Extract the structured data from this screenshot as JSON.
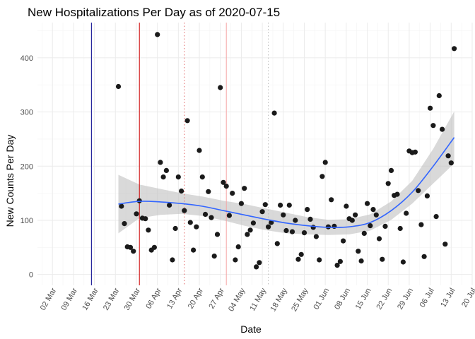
{
  "chart_data": {
    "type": "scatter",
    "title": "New Hospitalizations Per Day as of 2020-07-15",
    "xlabel": "Date",
    "ylabel": "New Counts Per Day",
    "xlim": [
      "2020-02-26",
      "2020-07-20"
    ],
    "ylim": [
      -20,
      465
    ],
    "grid": true,
    "x_ticks": [
      "02 Mar",
      "09 Mar",
      "16 Mar",
      "23 Mar",
      "30 Mar",
      "06 Apr",
      "13 Apr",
      "20 Apr",
      "27 Apr",
      "04 May",
      "11 May",
      "18 May",
      "25 May",
      "01 Jun",
      "08 Jun",
      "15 Jun",
      "22 Jun",
      "29 Jun",
      "06 Jul",
      "13 Jul",
      "20 Jul"
    ],
    "x_tick_dates": [
      "2020-03-02",
      "2020-03-09",
      "2020-03-16",
      "2020-03-23",
      "2020-03-30",
      "2020-04-06",
      "2020-04-13",
      "2020-04-20",
      "2020-04-27",
      "2020-05-04",
      "2020-05-11",
      "2020-05-18",
      "2020-05-25",
      "2020-06-01",
      "2020-06-08",
      "2020-06-15",
      "2020-06-22",
      "2020-06-29",
      "2020-07-06",
      "2020-07-13",
      "2020-07-20"
    ],
    "y_ticks": [
      0,
      100,
      200,
      300,
      400
    ],
    "reference_lines": [
      {
        "date": "2020-03-15",
        "color": "#00008b",
        "style": "solid"
      },
      {
        "date": "2020-03-31",
        "color": "#cc0000",
        "style": "solid"
      },
      {
        "date": "2020-04-15",
        "color": "#e06666",
        "style": "dotted"
      },
      {
        "date": "2020-04-29",
        "color": "#f4a6a6",
        "style": "solid"
      },
      {
        "date": "2020-05-13",
        "color": "#bbbbbb",
        "style": "dotted"
      }
    ],
    "points": [
      [
        "2020-03-24",
        347
      ],
      [
        "2020-03-25",
        126
      ],
      [
        "2020-03-26",
        94
      ],
      [
        "2020-03-27",
        51
      ],
      [
        "2020-03-28",
        50
      ],
      [
        "2020-03-29",
        43
      ],
      [
        "2020-03-30",
        112
      ],
      [
        "2020-03-31",
        136
      ],
      [
        "2020-04-01",
        104
      ],
      [
        "2020-04-02",
        103
      ],
      [
        "2020-04-03",
        82
      ],
      [
        "2020-04-04",
        45
      ],
      [
        "2020-04-05",
        50
      ],
      [
        "2020-04-06",
        443
      ],
      [
        "2020-04-07",
        207
      ],
      [
        "2020-04-08",
        180
      ],
      [
        "2020-04-09",
        192
      ],
      [
        "2020-04-10",
        128
      ],
      [
        "2020-04-11",
        27
      ],
      [
        "2020-04-12",
        85
      ],
      [
        "2020-04-13",
        180
      ],
      [
        "2020-04-14",
        154
      ],
      [
        "2020-04-15",
        118
      ],
      [
        "2020-04-16",
        284
      ],
      [
        "2020-04-17",
        96
      ],
      [
        "2020-04-18",
        45
      ],
      [
        "2020-04-19",
        88
      ],
      [
        "2020-04-20",
        229
      ],
      [
        "2020-04-21",
        180
      ],
      [
        "2020-04-22",
        111
      ],
      [
        "2020-04-23",
        153
      ],
      [
        "2020-04-24",
        105
      ],
      [
        "2020-04-25",
        34
      ],
      [
        "2020-04-26",
        74
      ],
      [
        "2020-04-27",
        345
      ],
      [
        "2020-04-28",
        170
      ],
      [
        "2020-04-29",
        163
      ],
      [
        "2020-04-30",
        109
      ],
      [
        "2020-05-01",
        150
      ],
      [
        "2020-05-02",
        27
      ],
      [
        "2020-05-03",
        51
      ],
      [
        "2020-05-04",
        131
      ],
      [
        "2020-05-05",
        159
      ],
      [
        "2020-05-06",
        74
      ],
      [
        "2020-05-07",
        82
      ],
      [
        "2020-05-08",
        95
      ],
      [
        "2020-05-09",
        14
      ],
      [
        "2020-05-10",
        22
      ],
      [
        "2020-05-11",
        116
      ],
      [
        "2020-05-12",
        129
      ],
      [
        "2020-05-13",
        88
      ],
      [
        "2020-05-14",
        96
      ],
      [
        "2020-05-15",
        298
      ],
      [
        "2020-05-16",
        57
      ],
      [
        "2020-05-17",
        128
      ],
      [
        "2020-05-18",
        110
      ],
      [
        "2020-05-19",
        81
      ],
      [
        "2020-05-20",
        128
      ],
      [
        "2020-05-21",
        79
      ],
      [
        "2020-05-22",
        100
      ],
      [
        "2020-05-23",
        28
      ],
      [
        "2020-05-24",
        37
      ],
      [
        "2020-05-25",
        77
      ],
      [
        "2020-05-26",
        120
      ],
      [
        "2020-05-27",
        102
      ],
      [
        "2020-05-28",
        87
      ],
      [
        "2020-05-29",
        70
      ],
      [
        "2020-05-30",
        27
      ],
      [
        "2020-05-31",
        181
      ],
      [
        "2020-06-01",
        207
      ],
      [
        "2020-06-02",
        88
      ],
      [
        "2020-06-03",
        138
      ],
      [
        "2020-06-04",
        89
      ],
      [
        "2020-06-05",
        17
      ],
      [
        "2020-06-06",
        24
      ],
      [
        "2020-06-07",
        62
      ],
      [
        "2020-06-08",
        126
      ],
      [
        "2020-06-09",
        103
      ],
      [
        "2020-06-10",
        100
      ],
      [
        "2020-06-11",
        110
      ],
      [
        "2020-06-12",
        43
      ],
      [
        "2020-06-13",
        25
      ],
      [
        "2020-06-14",
        76
      ],
      [
        "2020-06-15",
        131
      ],
      [
        "2020-06-16",
        90
      ],
      [
        "2020-06-17",
        120
      ],
      [
        "2020-06-18",
        110
      ],
      [
        "2020-06-19",
        66
      ],
      [
        "2020-06-20",
        28
      ],
      [
        "2020-06-21",
        89
      ],
      [
        "2020-06-22",
        168
      ],
      [
        "2020-06-23",
        192
      ],
      [
        "2020-06-24",
        146
      ],
      [
        "2020-06-25",
        148
      ],
      [
        "2020-06-26",
        85
      ],
      [
        "2020-06-27",
        23
      ],
      [
        "2020-06-28",
        113
      ],
      [
        "2020-06-29",
        228
      ],
      [
        "2020-06-30",
        225
      ],
      [
        "2020-07-01",
        226
      ],
      [
        "2020-07-02",
        155
      ],
      [
        "2020-07-03",
        92
      ],
      [
        "2020-07-04",
        33
      ],
      [
        "2020-07-05",
        145
      ],
      [
        "2020-07-06",
        307
      ],
      [
        "2020-07-07",
        275
      ],
      [
        "2020-07-08",
        107
      ],
      [
        "2020-07-09",
        330
      ],
      [
        "2020-07-10",
        268
      ],
      [
        "2020-07-11",
        56
      ],
      [
        "2020-07-12",
        219
      ],
      [
        "2020-07-13",
        206
      ],
      [
        "2020-07-14",
        417
      ]
    ],
    "smooth": {
      "color": "#3366ff",
      "band_color": "#bfbfbf",
      "x": [
        "2020-03-24",
        "2020-03-31",
        "2020-04-07",
        "2020-04-14",
        "2020-04-21",
        "2020-04-28",
        "2020-05-05",
        "2020-05-12",
        "2020-05-19",
        "2020-05-26",
        "2020-06-02",
        "2020-06-09",
        "2020-06-16",
        "2020-06-23",
        "2020-06-30",
        "2020-07-07",
        "2020-07-14"
      ],
      "y": [
        130,
        135,
        134,
        131,
        126,
        118,
        110,
        102,
        95,
        90,
        87,
        88,
        96,
        118,
        152,
        200,
        253
      ],
      "lower": [
        76,
        104,
        110,
        112,
        108,
        100,
        90,
        82,
        76,
        74,
        73,
        74,
        81,
        101,
        131,
        168,
        205
      ],
      "upper": [
        184,
        166,
        158,
        150,
        144,
        136,
        130,
        122,
        114,
        106,
        101,
        102,
        111,
        135,
        173,
        232,
        301
      ]
    }
  }
}
